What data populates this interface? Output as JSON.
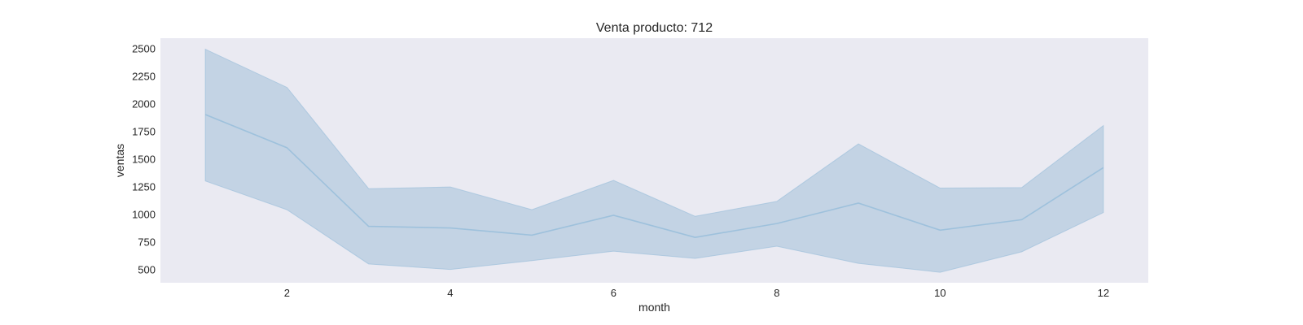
{
  "chart_data": {
    "type": "line",
    "title": "Venta producto: 712",
    "xlabel": "month",
    "ylabel": "ventas",
    "x": [
      1,
      2,
      3,
      4,
      5,
      6,
      7,
      8,
      9,
      10,
      11,
      12
    ],
    "series": [
      {
        "values": [
          1900,
          1600,
          890,
          875,
          810,
          990,
          790,
          915,
          1100,
          855,
          950,
          1420
        ],
        "ci_upper": [
          2490,
          2145,
          1230,
          1245,
          1040,
          1305,
          980,
          1115,
          1635,
          1235,
          1240,
          1800
        ],
        "ci_lower": [
          1300,
          1040,
          550,
          500,
          580,
          665,
          600,
          710,
          555,
          475,
          660,
          1015
        ]
      }
    ],
    "xticks": [
      2,
      4,
      6,
      8,
      10,
      12
    ],
    "yticks": [
      500,
      750,
      1000,
      1250,
      1500,
      1750,
      2000,
      2250,
      2500
    ],
    "xlim": [
      0.45,
      12.55
    ],
    "ylim": [
      380,
      2590
    ],
    "grid": false,
    "colors": {
      "background": "#eaeaf2",
      "line": "#9ec1dc",
      "band": "#c3d3e4"
    }
  }
}
